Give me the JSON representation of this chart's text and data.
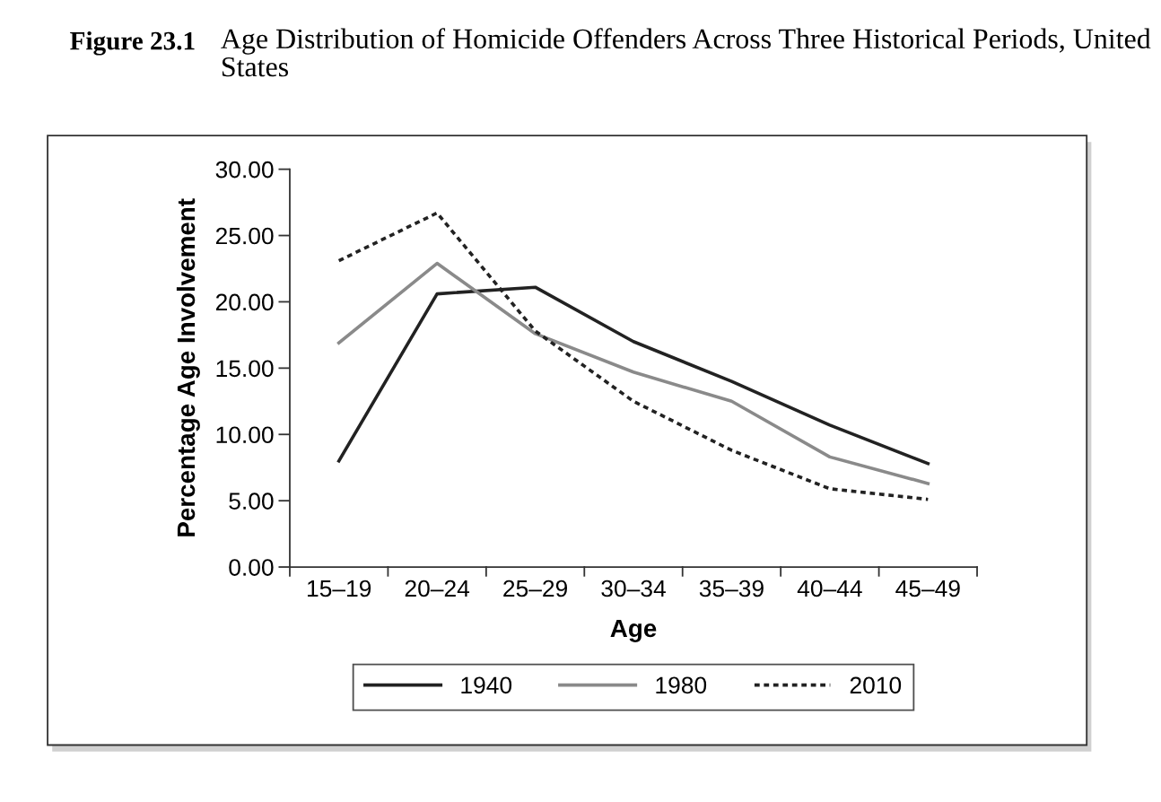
{
  "chart_data": {
    "type": "line",
    "title": "Age Distribution of Homicide Offenders Across Three Historical Periods, United States",
    "annotations": [
      "Figure 23.1"
    ],
    "xlabel": "Age",
    "ylabel": "Percentage Age Involvement",
    "categories": [
      "15–19",
      "20–24",
      "25–29",
      "30–34",
      "35–39",
      "40–44",
      "45–49"
    ],
    "ylim": [
      0,
      30
    ],
    "yticks": [
      {
        "value": 0,
        "label": "0.00"
      },
      {
        "value": 5,
        "label": "5.00"
      },
      {
        "value": 10,
        "label": "10.00"
      },
      {
        "value": 15,
        "label": "15.00"
      },
      {
        "value": 20,
        "label": "20.00"
      },
      {
        "value": 25,
        "label": "25.00"
      },
      {
        "value": 30,
        "label": "30.00"
      }
    ],
    "grid": false,
    "legend": "bottom",
    "marker": "none",
    "series": [
      {
        "name": "1940",
        "color": "#222222",
        "line_style": "solid",
        "values": [
          8.0,
          20.6,
          21.1,
          17.0,
          14.0,
          10.7,
          7.8
        ]
      },
      {
        "name": "1980",
        "color": "#8a8a8a",
        "line_style": "solid",
        "values": [
          16.9,
          22.9,
          17.6,
          14.7,
          12.5,
          8.3,
          6.3
        ]
      },
      {
        "name": "2010",
        "color": "#222222",
        "line_style": "dashed",
        "values": [
          23.1,
          26.7,
          17.8,
          12.5,
          8.8,
          5.9,
          5.1
        ]
      }
    ]
  }
}
